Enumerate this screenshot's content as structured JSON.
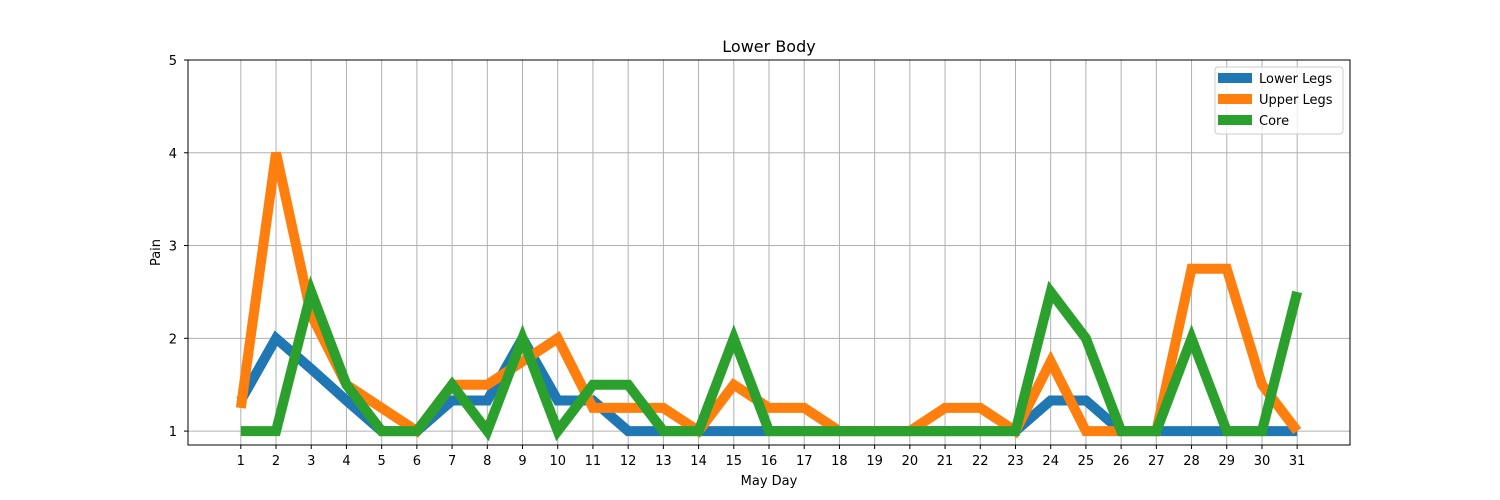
{
  "chart_data": {
    "type": "line",
    "title": "Lower Body",
    "xlabel": "May Day",
    "ylabel": "Pain",
    "x": [
      1,
      2,
      3,
      4,
      5,
      6,
      7,
      8,
      9,
      10,
      11,
      12,
      13,
      14,
      15,
      16,
      17,
      18,
      19,
      20,
      21,
      22,
      23,
      24,
      25,
      26,
      27,
      28,
      29,
      30,
      31
    ],
    "xlim": [
      -0.5,
      32.5
    ],
    "ylim": [
      0.85,
      5
    ],
    "yticks": [
      1,
      2,
      3,
      4,
      5
    ],
    "grid": true,
    "legend_position": "top-right",
    "series": [
      {
        "name": "Lower Legs",
        "color": "#1f77b4",
        "values": [
          1.33,
          2,
          1.67,
          1.33,
          1,
          1,
          1.33,
          1.33,
          2,
          1.33,
          1.33,
          1,
          1,
          1,
          1,
          1,
          1,
          1,
          1,
          1,
          1,
          1,
          1,
          1.33,
          1.33,
          1,
          1,
          1,
          1,
          1,
          1
        ]
      },
      {
        "name": "Upper Legs",
        "color": "#ff7f0e",
        "values": [
          1.25,
          4,
          2.25,
          1.5,
          1.25,
          1,
          1.5,
          1.5,
          1.75,
          2,
          1.25,
          1.25,
          1.25,
          1,
          1.5,
          1.25,
          1.25,
          1,
          1,
          1,
          1.25,
          1.25,
          1,
          1.75,
          1,
          1,
          1,
          2.75,
          2.75,
          1.5,
          1
        ]
      },
      {
        "name": "Core",
        "color": "#2ca02c",
        "values": [
          1,
          1,
          2.5,
          1.5,
          1,
          1,
          1.5,
          1,
          2,
          1,
          1.5,
          1.5,
          1,
          1,
          2,
          1,
          1,
          1,
          1,
          1,
          1,
          1,
          1,
          2.5,
          2,
          1,
          1,
          2,
          1,
          1,
          2.5
        ]
      }
    ]
  }
}
